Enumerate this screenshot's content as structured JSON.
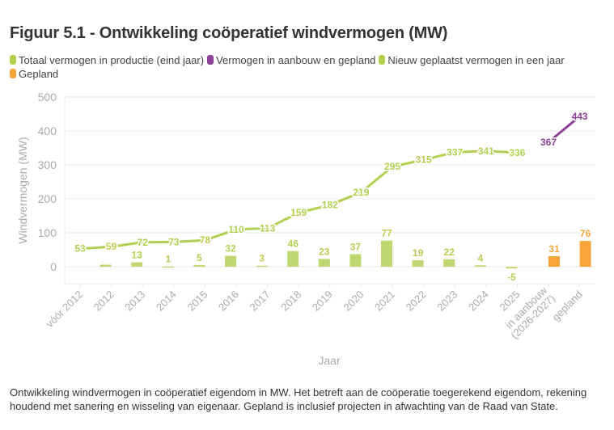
{
  "chart_data": {
    "type": "bar+line",
    "title": "Figuur 5.1 - Ontwikkeling coöperatief windvermogen (MW)",
    "xlabel": "Jaar",
    "ylabel": "Windvermogen (MW)",
    "ylim": [
      -50,
      500
    ],
    "yticks": [
      0,
      100,
      200,
      300,
      400,
      500
    ],
    "grid": true,
    "legend_position": "top",
    "categories": [
      "vóór 2012",
      "2012",
      "2013",
      "2014",
      "2015",
      "2016",
      "2017",
      "2018",
      "2019",
      "2020",
      "2021",
      "2022",
      "2023",
      "2024",
      "2025",
      "in aanbouw (2026-2027)",
      "gepland"
    ],
    "series": [
      {
        "name": "Totaal vermogen in productie (eind jaar)",
        "type": "line",
        "color": "#b3cf4f",
        "values": [
          53,
          59,
          72,
          73,
          78,
          110,
          113,
          159,
          182,
          219,
          295,
          315,
          337,
          341,
          336,
          null,
          null
        ]
      },
      {
        "name": "Vermogen in aanbouw en gepland",
        "type": "line",
        "color": "#8e3f98",
        "values": [
          null,
          null,
          null,
          null,
          null,
          null,
          null,
          null,
          null,
          null,
          null,
          null,
          null,
          null,
          null,
          367,
          443
        ]
      },
      {
        "name": "Nieuw geplaatst vermogen in een jaar",
        "type": "bar",
        "color": "#b3cf4f",
        "values": [
          null,
          6,
          13,
          1,
          5,
          32,
          3,
          46,
          23,
          37,
          77,
          19,
          22,
          4,
          -5,
          null,
          null
        ],
        "labels": [
          null,
          null,
          "13",
          "1",
          "5",
          "32",
          "3",
          "46",
          "23",
          "37",
          "77",
          "19",
          "22",
          "4",
          "-5",
          null,
          null
        ]
      },
      {
        "name": "Gepland",
        "type": "bar",
        "color": "#f5a53a",
        "values": [
          null,
          null,
          null,
          null,
          null,
          null,
          null,
          null,
          null,
          null,
          null,
          null,
          null,
          null,
          null,
          31,
          76
        ]
      }
    ]
  },
  "caption": "Ontwikkeling windvermogen in coöperatief eigendom in MW. Het betreft aan de coöperatie toegerekend eigendom, rekening houdend met sanering en wisseling van eigenaar. Gepland is inclusief projecten in afwachting van de Raad van State."
}
